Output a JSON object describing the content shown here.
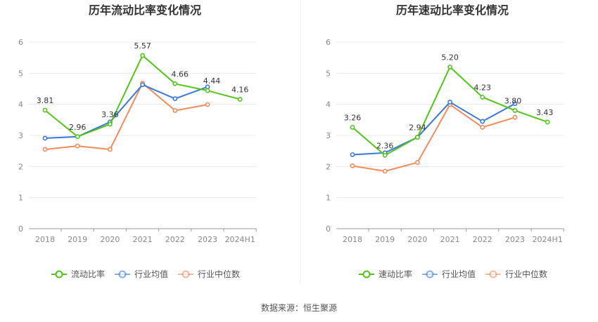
{
  "source_text": "数据来源：恒生聚源",
  "chart_data": [
    {
      "type": "line",
      "title": "历年流动比率变化情况",
      "categories": [
        "2018",
        "2019",
        "2020",
        "2021",
        "2022",
        "2023",
        "2024H1"
      ],
      "ylim": [
        0,
        6
      ],
      "yticks": [
        "0",
        "1",
        "2",
        "3",
        "4",
        "5",
        "6"
      ],
      "grid": true,
      "legend_position": "bottom",
      "series": [
        {
          "name": "流动比率",
          "color": "#52c41a",
          "values": [
            3.81,
            2.96,
            3.36,
            5.57,
            4.66,
            4.44,
            4.16
          ],
          "labels": [
            "3.81",
            "2.96",
            "3.36",
            "5.57",
            "4.66",
            "4.44",
            "4.16"
          ]
        },
        {
          "name": "行业均值",
          "color": "#3a78d8",
          "values": [
            2.91,
            2.96,
            3.43,
            4.63,
            4.18,
            4.56,
            null
          ]
        },
        {
          "name": "行业中位数",
          "color": "#f28b5a",
          "values": [
            2.55,
            2.66,
            2.55,
            4.68,
            3.8,
            3.99,
            null
          ]
        }
      ]
    },
    {
      "type": "line",
      "title": "历年速动比率变化情况",
      "categories": [
        "2018",
        "2019",
        "2020",
        "2021",
        "2022",
        "2023",
        "2024H1"
      ],
      "ylim": [
        0,
        6
      ],
      "yticks": [
        "0",
        "1",
        "2",
        "3",
        "4",
        "5",
        "6"
      ],
      "grid": true,
      "legend_position": "bottom",
      "series": [
        {
          "name": "速动比率",
          "color": "#52c41a",
          "values": [
            3.26,
            2.36,
            2.94,
            5.2,
            4.23,
            3.8,
            3.43
          ],
          "labels": [
            "3.26",
            "2.36",
            "2.94",
            "5.20",
            "4.23",
            "3.80",
            "3.43"
          ]
        },
        {
          "name": "行业均值",
          "color": "#3a78d8",
          "values": [
            2.38,
            2.44,
            2.94,
            4.07,
            3.45,
            4.02,
            null
          ]
        },
        {
          "name": "行业中位数",
          "color": "#f28b5a",
          "values": [
            2.02,
            1.85,
            2.13,
            3.99,
            3.26,
            3.58,
            null
          ]
        }
      ]
    }
  ]
}
